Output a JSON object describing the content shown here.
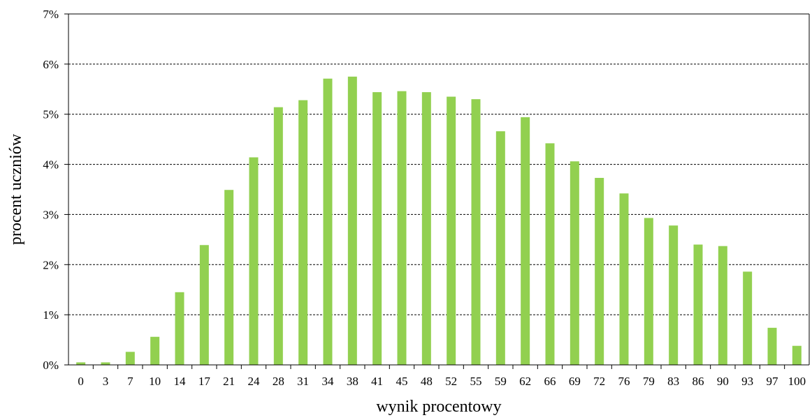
{
  "colors": {
    "bar": "#92D050",
    "axis": "#000000",
    "grid": "#000000"
  },
  "chart_data": {
    "type": "bar",
    "title": "",
    "xlabel": "wynik procentowy",
    "ylabel": "procent uczniów",
    "ylim": [
      0,
      7
    ],
    "y_tick_values": [
      0,
      1,
      2,
      3,
      4,
      5,
      6,
      7
    ],
    "y_tick_labels": [
      "0%",
      "1%",
      "2%",
      "3%",
      "4%",
      "5%",
      "6%",
      "7%"
    ],
    "grid": "horizontal dashed",
    "legend": "none",
    "categories": [
      "0",
      "3",
      "7",
      "10",
      "14",
      "17",
      "21",
      "24",
      "28",
      "31",
      "34",
      "38",
      "41",
      "45",
      "48",
      "52",
      "55",
      "59",
      "62",
      "66",
      "69",
      "72",
      "76",
      "79",
      "83",
      "86",
      "90",
      "93",
      "97",
      "100"
    ],
    "values": [
      0.05,
      0.05,
      0.26,
      0.56,
      1.45,
      2.39,
      3.49,
      4.14,
      5.14,
      5.28,
      5.71,
      5.75,
      5.44,
      5.46,
      5.44,
      5.35,
      5.3,
      4.66,
      4.94,
      4.42,
      4.06,
      3.73,
      3.42,
      2.93,
      2.78,
      2.4,
      2.37,
      1.86,
      0.74,
      0.38
    ]
  }
}
